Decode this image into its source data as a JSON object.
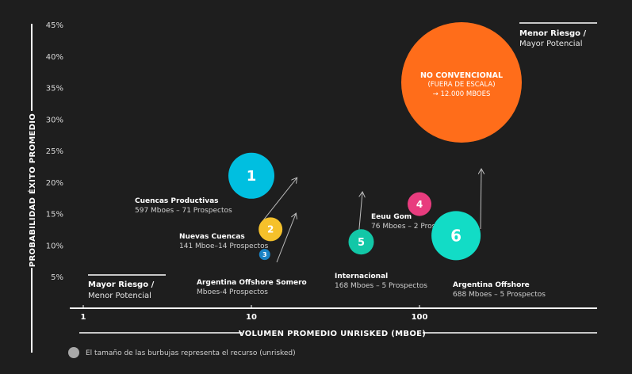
{
  "chart_data": {
    "type": "scatter",
    "xscale": "log",
    "xlim": [
      1,
      200
    ],
    "ylim": [
      5,
      45
    ],
    "xlabel": "VOLUMEN PROMEDIO UNRISKED (MBOE)",
    "ylabel": "PROBABILIDAD ÉXITO PROMEDIO",
    "x_ticks": [
      "1",
      "10",
      "100"
    ],
    "y_ticks": [
      "45%",
      "40%",
      "35%",
      "30%",
      "25%",
      "20%",
      "15%",
      "10%",
      "5%"
    ],
    "points": [
      {
        "num": "1",
        "x": 10,
        "y": 21,
        "color": "#00bfe0",
        "name": "Cuencas Productivas",
        "sub": "597 Mboes – 71 Prospectos"
      },
      {
        "num": "2",
        "x": 13,
        "y": 12.5,
        "color": "#f5c12b",
        "name": "Nuevas Cuencas",
        "sub": "141 Mboe–14 Prospectos"
      },
      {
        "num": "3",
        "x": 12,
        "y": 8.5,
        "color": "#1a82c4",
        "name": "Argentina Offshore Somero",
        "sub": "Mboes-4 Prospectos"
      },
      {
        "num": "4",
        "x": 100,
        "y": 16.5,
        "color": "#e83c7e",
        "name": "Eeuu Gom",
        "sub": "76 Mboes – 2 Prospectos"
      },
      {
        "num": "5",
        "x": 45,
        "y": 10.5,
        "color": "#12c7a7",
        "name": "Internacional",
        "sub": "168 Mboes – 5 Prospectos"
      },
      {
        "num": "6",
        "x": 165,
        "y": 11.5,
        "color": "#12dcc6",
        "name": "Argentina Offshore",
        "sub": "688 Mboes – 5 Prospectos"
      }
    ],
    "unconventional": {
      "title": "NO CONVENCIONAL",
      "line2": "(FUERA DE ESCALA)",
      "line3": "→ 12.000 MBOES",
      "color": "#ff6d1a"
    },
    "corner_top_right": {
      "bold": "Menor Riesgo /",
      "sub": "Mayor Potencial"
    },
    "corner_bottom_left": {
      "bold": "Mayor Riesgo /",
      "sub": "Menor Potencial"
    },
    "legend_note": "El tamaño de las burbujas representa el recurso (unrisked)"
  }
}
